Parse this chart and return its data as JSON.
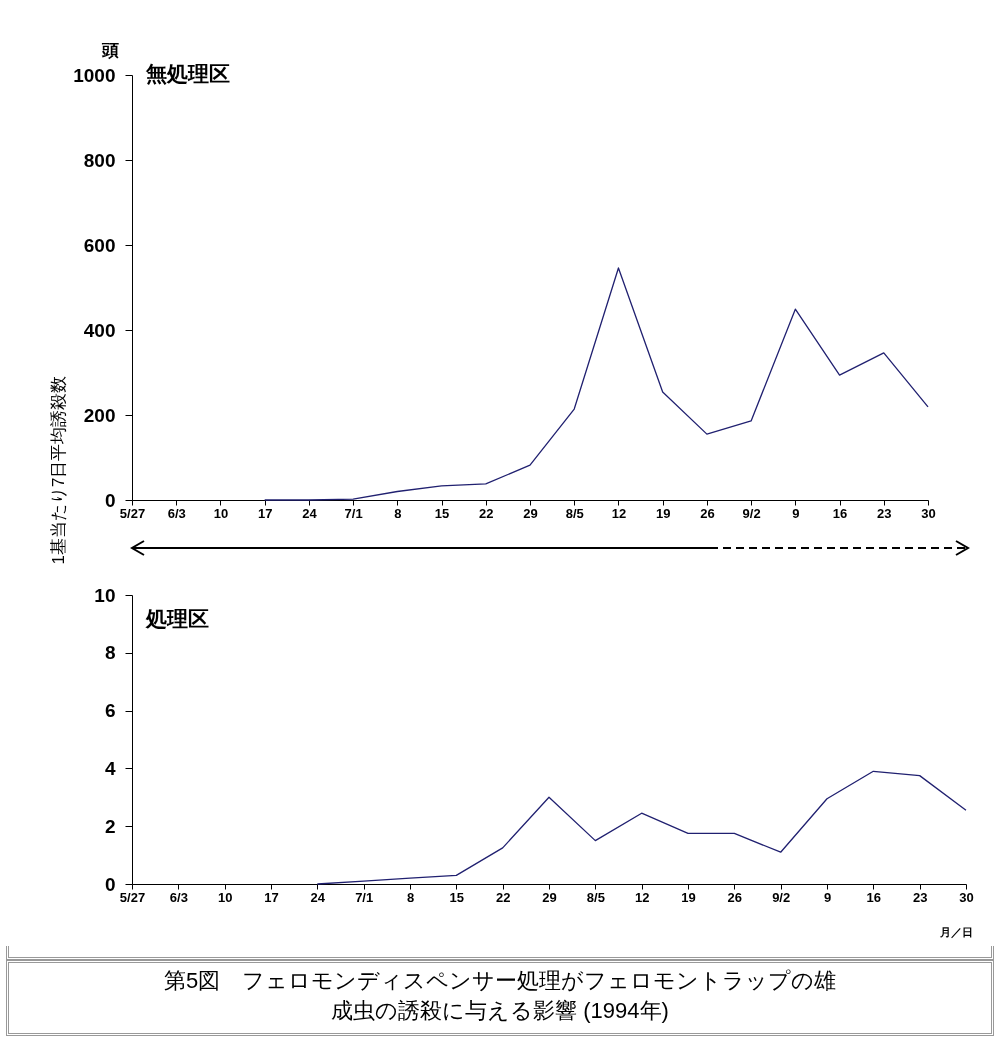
{
  "chart_data": [
    {
      "type": "line",
      "title": "無処理区",
      "ylabel": "1基当たり7日平均誘殺数",
      "annotations": [
        "頭"
      ],
      "categories": [
        "5/27",
        "6/3",
        "10",
        "17",
        "24",
        "7/1",
        "8",
        "15",
        "22",
        "29",
        "8/5",
        "12",
        "19",
        "26",
        "9/2",
        "9",
        "16",
        "23",
        "30"
      ],
      "series": [
        {
          "color": "#202070",
          "values": [
            null,
            null,
            null,
            0,
            0,
            2,
            20,
            33,
            38,
            82,
            214,
            546,
            254,
            155,
            186,
            449,
            294,
            346,
            219
          ]
        }
      ],
      "ylim": [
        0,
        1000
      ],
      "yticks": [
        0,
        200,
        400,
        600,
        800,
        1000
      ]
    },
    {
      "type": "line",
      "title": "処理区",
      "xlabel": "月／日",
      "annotations": [
        "第5図　フェロモンディスペンサー処理がフェロモントラップの雄成虫の誘殺に与える影響  (1994年)"
      ],
      "categories": [
        "5/27",
        "6/3",
        "10",
        "17",
        "24",
        "7/1",
        "8",
        "15",
        "22",
        "29",
        "8/5",
        "12",
        "19",
        "26",
        "9/2",
        "9",
        "16",
        "23",
        "30"
      ],
      "series": [
        {
          "color": "#202070",
          "values": [
            null,
            null,
            null,
            null,
            0,
            0.1,
            0.2,
            0.3,
            1.25,
            3.0,
            1.5,
            2.45,
            1.75,
            1.75,
            1.1,
            2.95,
            3.9,
            3.75,
            2.55
          ]
        }
      ],
      "ylim": [
        0,
        10
      ],
      "yticks": [
        0,
        2,
        4,
        6,
        8,
        10
      ]
    }
  ]
}
